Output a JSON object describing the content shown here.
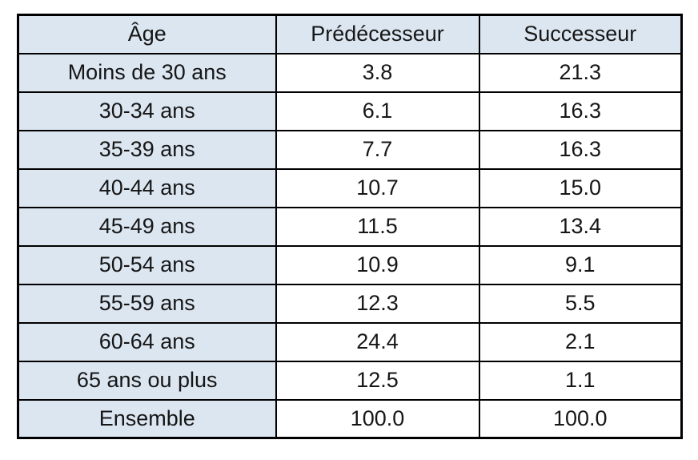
{
  "colors": {
    "header_fill": "#dce6f1",
    "label_column_fill": "#dce6f1",
    "value_cell_fill": "#ffffff",
    "border": "#000000",
    "text": "#161616"
  },
  "table": {
    "columns": [
      "Âge",
      "Prédécesseur",
      "Successeur"
    ],
    "rows": [
      [
        "Moins de 30 ans",
        "3.8",
        "21.3"
      ],
      [
        "30-34 ans",
        "6.1",
        "16.3"
      ],
      [
        "35-39 ans",
        "7.7",
        "16.3"
      ],
      [
        "40-44 ans",
        "10.7",
        "15.0"
      ],
      [
        "45-49 ans",
        "11.5",
        "13.4"
      ],
      [
        "50-54 ans",
        "10.9",
        "9.1"
      ],
      [
        "55-59 ans",
        "12.3",
        "5.5"
      ],
      [
        "60-64 ans",
        "24.4",
        "2.1"
      ],
      [
        "65 ans ou plus",
        "12.5",
        "1.1"
      ],
      [
        "Ensemble",
        "100.0",
        "100.0"
      ]
    ]
  },
  "chart_data": {
    "type": "table",
    "title": "",
    "columns": [
      "Âge",
      "Prédécesseur",
      "Successeur"
    ],
    "categories": [
      "Moins de 30 ans",
      "30-34 ans",
      "35-39 ans",
      "40-44 ans",
      "45-49 ans",
      "50-54 ans",
      "55-59 ans",
      "60-64 ans",
      "65 ans ou plus",
      "Ensemble"
    ],
    "series": [
      {
        "name": "Prédécesseur",
        "values": [
          3.8,
          6.1,
          7.7,
          10.7,
          11.5,
          10.9,
          12.3,
          24.4,
          12.5,
          100.0
        ]
      },
      {
        "name": "Successeur",
        "values": [
          21.3,
          16.3,
          16.3,
          15.0,
          13.4,
          9.1,
          5.5,
          2.1,
          1.1,
          100.0
        ]
      }
    ],
    "units": "percent"
  }
}
